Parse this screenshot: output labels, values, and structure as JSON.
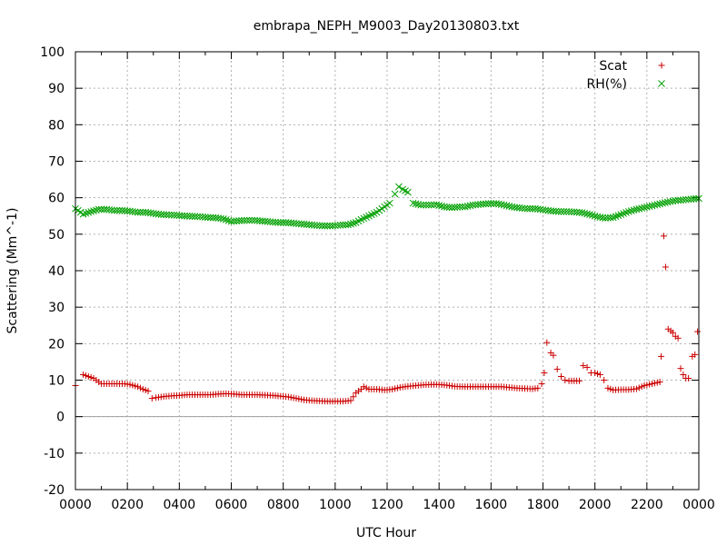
{
  "chart_data": {
    "type": "scatter",
    "title": "embrapa_NEPH_M9003_Day20130803.txt",
    "xlabel": "UTC Hour",
    "ylabel": "Scattering (Mm^-1)",
    "xlim": [
      0,
      24
    ],
    "ylim": [
      -20,
      100
    ],
    "x_tick_labels": [
      "0000",
      "0200",
      "0400",
      "0600",
      "0800",
      "1000",
      "1200",
      "1400",
      "1600",
      "1800",
      "2000",
      "2200",
      "0000"
    ],
    "y_ticks": [
      -20,
      -10,
      0,
      10,
      20,
      30,
      40,
      50,
      60,
      70,
      80,
      90,
      100
    ],
    "grid": true,
    "legend_position": "top-right",
    "colors": {
      "scat": "#cc0000",
      "rh": "#00a000",
      "zero_line": "#a0a0a0"
    },
    "series": [
      {
        "name": "Scat",
        "marker": "+",
        "points": [
          [
            0.0,
            8.5
          ],
          [
            0.3,
            11.5
          ],
          [
            0.5,
            11
          ],
          [
            0.7,
            10.5
          ],
          [
            0.9,
            9.5
          ],
          [
            1.0,
            9
          ],
          [
            1.3,
            9
          ],
          [
            1.6,
            9
          ],
          [
            1.9,
            9
          ],
          [
            2.1,
            8.8
          ],
          [
            2.4,
            8.2
          ],
          [
            2.6,
            7.5
          ],
          [
            2.8,
            7
          ],
          [
            2.95,
            5
          ],
          [
            3.1,
            5.2
          ],
          [
            3.4,
            5.5
          ],
          [
            3.7,
            5.7
          ],
          [
            4.0,
            5.8
          ],
          [
            4.3,
            6
          ],
          [
            4.6,
            6
          ],
          [
            4.9,
            6
          ],
          [
            5.2,
            6
          ],
          [
            5.5,
            6.2
          ],
          [
            5.8,
            6.3
          ],
          [
            6.1,
            6.2
          ],
          [
            6.4,
            6
          ],
          [
            6.7,
            6
          ],
          [
            7.0,
            6
          ],
          [
            7.3,
            5.9
          ],
          [
            7.6,
            5.8
          ],
          [
            7.9,
            5.6
          ],
          [
            8.2,
            5.4
          ],
          [
            8.5,
            5
          ],
          [
            8.8,
            4.6
          ],
          [
            9.1,
            4.4
          ],
          [
            9.4,
            4.3
          ],
          [
            9.7,
            4.2
          ],
          [
            10.0,
            4.2
          ],
          [
            10.3,
            4.2
          ],
          [
            10.6,
            4.4
          ],
          [
            10.8,
            6.5
          ],
          [
            11.0,
            7.5
          ],
          [
            11.1,
            8.2
          ],
          [
            11.3,
            7.5
          ],
          [
            11.6,
            7.5
          ],
          [
            11.9,
            7.3
          ],
          [
            12.2,
            7.5
          ],
          [
            12.5,
            8
          ],
          [
            12.8,
            8.3
          ],
          [
            13.1,
            8.5
          ],
          [
            13.4,
            8.7
          ],
          [
            13.7,
            8.8
          ],
          [
            14.0,
            8.8
          ],
          [
            14.3,
            8.6
          ],
          [
            14.6,
            8.3
          ],
          [
            14.9,
            8.2
          ],
          [
            15.2,
            8.2
          ],
          [
            15.5,
            8.2
          ],
          [
            15.8,
            8.2
          ],
          [
            16.1,
            8.2
          ],
          [
            16.4,
            8.2
          ],
          [
            16.7,
            8
          ],
          [
            17.0,
            7.8
          ],
          [
            17.3,
            7.7
          ],
          [
            17.6,
            7.6
          ],
          [
            17.8,
            7.8
          ],
          [
            17.95,
            9
          ],
          [
            18.05,
            12
          ],
          [
            18.15,
            20.3
          ],
          [
            18.3,
            17.5
          ],
          [
            18.4,
            16.8
          ],
          [
            18.55,
            13
          ],
          [
            18.7,
            11
          ],
          [
            18.85,
            10
          ],
          [
            19.0,
            9.8
          ],
          [
            19.2,
            9.8
          ],
          [
            19.4,
            9.8
          ],
          [
            19.55,
            14
          ],
          [
            19.7,
            13.5
          ],
          [
            19.85,
            12
          ],
          [
            20.0,
            12
          ],
          [
            20.2,
            11.5
          ],
          [
            20.35,
            10
          ],
          [
            20.5,
            7.8
          ],
          [
            20.7,
            7.3
          ],
          [
            21.0,
            7.4
          ],
          [
            21.3,
            7.4
          ],
          [
            21.6,
            7.6
          ],
          [
            21.9,
            8.5
          ],
          [
            22.2,
            9
          ],
          [
            22.5,
            9.5
          ],
          [
            22.55,
            16.5
          ],
          [
            22.65,
            49.5
          ],
          [
            22.72,
            41
          ],
          [
            22.82,
            24
          ],
          [
            22.92,
            23.5
          ],
          [
            23.0,
            23
          ],
          [
            23.1,
            22
          ],
          [
            23.2,
            21.5
          ],
          [
            23.3,
            13.2
          ],
          [
            23.4,
            11.5
          ],
          [
            23.5,
            10.5
          ],
          [
            23.6,
            10.5
          ],
          [
            23.75,
            16.5
          ],
          [
            23.85,
            17
          ],
          [
            23.95,
            23.3
          ]
        ]
      },
      {
        "name": "RH(%)",
        "marker": "x",
        "points": [
          [
            0.0,
            57
          ],
          [
            0.3,
            55.5
          ],
          [
            0.6,
            56.2
          ],
          [
            0.9,
            56.8
          ],
          [
            1.2,
            56.8
          ],
          [
            1.5,
            56.5
          ],
          [
            1.8,
            56.5
          ],
          [
            2.1,
            56.3
          ],
          [
            2.4,
            56
          ],
          [
            2.7,
            56
          ],
          [
            3.0,
            55.7
          ],
          [
            3.3,
            55.4
          ],
          [
            3.6,
            55.3
          ],
          [
            3.9,
            55.2
          ],
          [
            4.2,
            55
          ],
          [
            4.5,
            54.9
          ],
          [
            4.8,
            54.8
          ],
          [
            5.1,
            54.6
          ],
          [
            5.4,
            54.5
          ],
          [
            5.7,
            54.2
          ],
          [
            6.0,
            53.5
          ],
          [
            6.3,
            53.7
          ],
          [
            6.6,
            53.8
          ],
          [
            6.9,
            53.8
          ],
          [
            7.2,
            53.6
          ],
          [
            7.5,
            53.4
          ],
          [
            7.8,
            53.2
          ],
          [
            8.1,
            53.2
          ],
          [
            8.4,
            53
          ],
          [
            8.7,
            52.8
          ],
          [
            9.0,
            52.6
          ],
          [
            9.3,
            52.4
          ],
          [
            9.6,
            52.3
          ],
          [
            9.9,
            52.3
          ],
          [
            10.2,
            52.5
          ],
          [
            10.5,
            52.6
          ],
          [
            10.8,
            53.2
          ],
          [
            11.0,
            54
          ],
          [
            11.3,
            55
          ],
          [
            11.6,
            56
          ],
          [
            11.9,
            57.5
          ],
          [
            12.1,
            58.5
          ],
          [
            12.3,
            61
          ],
          [
            12.45,
            63
          ],
          [
            12.6,
            62.3
          ],
          [
            12.8,
            61.5
          ],
          [
            13.0,
            58.5
          ],
          [
            13.3,
            58
          ],
          [
            13.6,
            58
          ],
          [
            13.9,
            58.1
          ],
          [
            14.2,
            57.5
          ],
          [
            14.5,
            57.3
          ],
          [
            14.8,
            57.5
          ],
          [
            15.0,
            57.5
          ],
          [
            15.3,
            58
          ],
          [
            15.6,
            58.2
          ],
          [
            15.9,
            58.4
          ],
          [
            16.2,
            58.4
          ],
          [
            16.5,
            58
          ],
          [
            16.8,
            57.5
          ],
          [
            17.1,
            57.2
          ],
          [
            17.4,
            57
          ],
          [
            17.7,
            57
          ],
          [
            18.0,
            56.7
          ],
          [
            18.3,
            56.4
          ],
          [
            18.6,
            56.2
          ],
          [
            18.9,
            56.2
          ],
          [
            19.2,
            56.1
          ],
          [
            19.5,
            55.9
          ],
          [
            19.8,
            55.4
          ],
          [
            20.1,
            54.8
          ],
          [
            20.4,
            54.4
          ],
          [
            20.7,
            54.6
          ],
          [
            21.0,
            55.4
          ],
          [
            21.3,
            56.2
          ],
          [
            21.6,
            56.8
          ],
          [
            21.9,
            57.3
          ],
          [
            22.2,
            57.8
          ],
          [
            22.5,
            58.3
          ],
          [
            22.8,
            58.8
          ],
          [
            23.1,
            59.2
          ],
          [
            23.4,
            59.4
          ],
          [
            23.7,
            59.6
          ],
          [
            24.0,
            59.8
          ]
        ]
      }
    ]
  }
}
